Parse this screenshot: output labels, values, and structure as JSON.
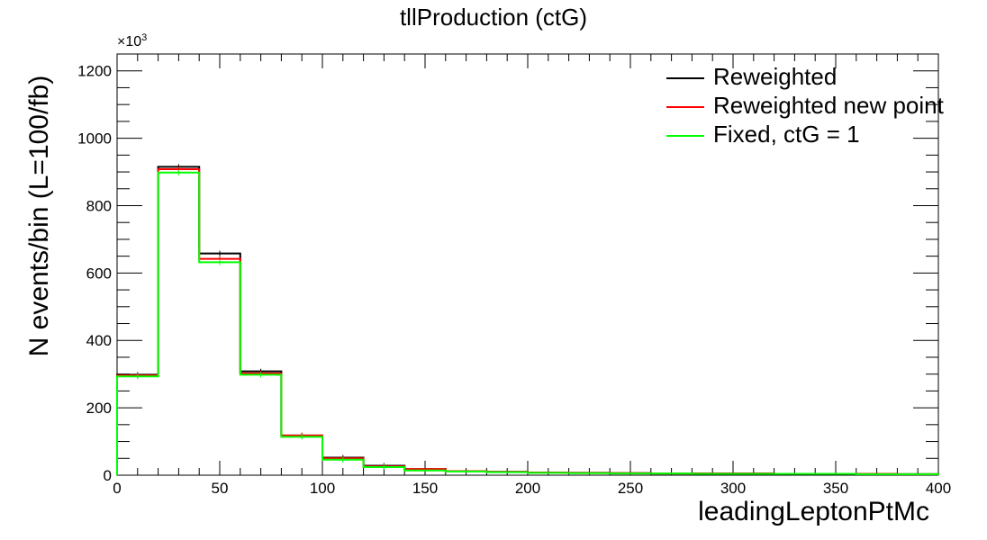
{
  "chart_data": {
    "type": "line",
    "title": "tllProduction (ctG)",
    "xlabel": "leadingLeptonPtMc",
    "ylabel": "N events/bin (L=100/fb)",
    "y_multiplier_label": "×10",
    "y_multiplier_exponent": "3",
    "xlim": [
      0,
      400
    ],
    "ylim": [
      0,
      1250
    ],
    "x_ticks": [
      0,
      50,
      100,
      150,
      200,
      250,
      300,
      350,
      400
    ],
    "y_ticks": [
      0,
      200,
      400,
      600,
      800,
      1000,
      1200
    ],
    "bin_edges": [
      0,
      20,
      40,
      60,
      80,
      100,
      120,
      140,
      160,
      180,
      200,
      220,
      240,
      260,
      280,
      300,
      320,
      340,
      360,
      380,
      400
    ],
    "legend_position": "top-right",
    "series": [
      {
        "name": "Reweighted",
        "color": "#000000",
        "values": [
          298,
          915,
          658,
          308,
          118,
          52,
          28,
          18,
          12,
          10,
          8,
          7,
          6,
          5,
          5,
          5,
          4,
          4,
          4,
          3
        ]
      },
      {
        "name": "Reweighted new point",
        "color": "#ff0000",
        "values": [
          296,
          908,
          642,
          302,
          118,
          50,
          26,
          18,
          12,
          10,
          8,
          7,
          6,
          5,
          5,
          5,
          4,
          4,
          4,
          3
        ]
      },
      {
        "name": "Fixed, ctG = 1",
        "color": "#00ff00",
        "values": [
          293,
          898,
          632,
          298,
          114,
          46,
          24,
          14,
          11,
          9,
          7,
          6,
          5,
          5,
          4,
          4,
          4,
          4,
          3,
          3
        ]
      }
    ]
  }
}
